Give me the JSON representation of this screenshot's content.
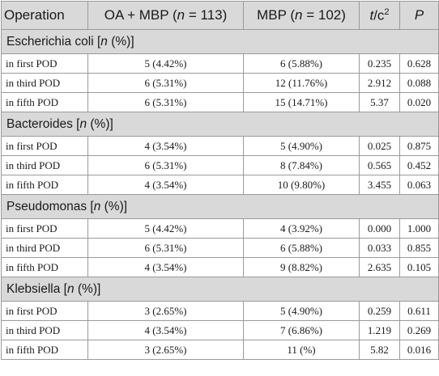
{
  "header": {
    "operation": "Operation",
    "oa_mbp_prefix": "OA + MBP (",
    "n_symbol": "n",
    "oa_mbp_suffix": " = 113)",
    "mbp_prefix": "MBP (",
    "mbp_suffix": " = 102)",
    "t_c": "t",
    "c_label": "/c",
    "superscript": "2",
    "p": "P"
  },
  "sections": [
    {
      "title": "Escherichia coli [",
      "n": "n",
      "unit": " (%)]",
      "rows": [
        {
          "label": "in first POD",
          "oa_mbp": "5 (4.42%)",
          "mbp": "6 (5.88%)",
          "tc": "0.235",
          "p": "0.628"
        },
        {
          "label": "in third POD",
          "oa_mbp": "6 (5.31%)",
          "mbp": "12 (11.76%)",
          "tc": "2.912",
          "p": "0.088"
        },
        {
          "label": "in fifth POD",
          "oa_mbp": "6 (5.31%)",
          "mbp": "15 (14.71%)",
          "tc": "5.37",
          "p": "0.020"
        }
      ]
    },
    {
      "title": "Bacteroides [",
      "n": "n",
      "unit": " (%)]",
      "rows": [
        {
          "label": "in first POD",
          "oa_mbp": "4 (3.54%)",
          "mbp": "5 (4.90%)",
          "tc": "0.025",
          "p": "0.875"
        },
        {
          "label": "in third POD",
          "oa_mbp": "6 (5.31%)",
          "mbp": "8 (7.84%)",
          "tc": "0.565",
          "p": "0.452"
        },
        {
          "label": "in fifth POD",
          "oa_mbp": "4 (3.54%)",
          "mbp": "10 (9.80%)",
          "tc": "3.455",
          "p": "0.063"
        }
      ]
    },
    {
      "title": "Pseudomonas [",
      "n": "n",
      "unit": " (%)]",
      "rows": [
        {
          "label": "in first POD",
          "oa_mbp": "5 (4.42%)",
          "mbp": "4 (3.92%)",
          "tc": "0.000",
          "p": "1.000"
        },
        {
          "label": "in third POD",
          "oa_mbp": "6 (5.31%)",
          "mbp": "6 (5.88%)",
          "tc": "0.033",
          "p": "0.855"
        },
        {
          "label": "in fifth POD",
          "oa_mbp": "4 (3.54%)",
          "mbp": "9 (8.82%)",
          "tc": "2.635",
          "p": "0.105"
        }
      ]
    },
    {
      "title": "Klebsiella [",
      "n": "n",
      "unit": " (%)]",
      "rows": [
        {
          "label": "in first POD",
          "oa_mbp": "3 (2.65%)",
          "mbp": "5 (4.90%)",
          "tc": "0.259",
          "p": "0.611"
        },
        {
          "label": "in third POD",
          "oa_mbp": "4 (3.54%)",
          "mbp": "7 (6.86%)",
          "tc": "1.219",
          "p": "0.269"
        },
        {
          "label": "in fifth POD",
          "oa_mbp": "3 (2.65%)",
          "mbp": "11 (%)",
          "tc": "5.82",
          "p": "0.016"
        }
      ]
    }
  ]
}
